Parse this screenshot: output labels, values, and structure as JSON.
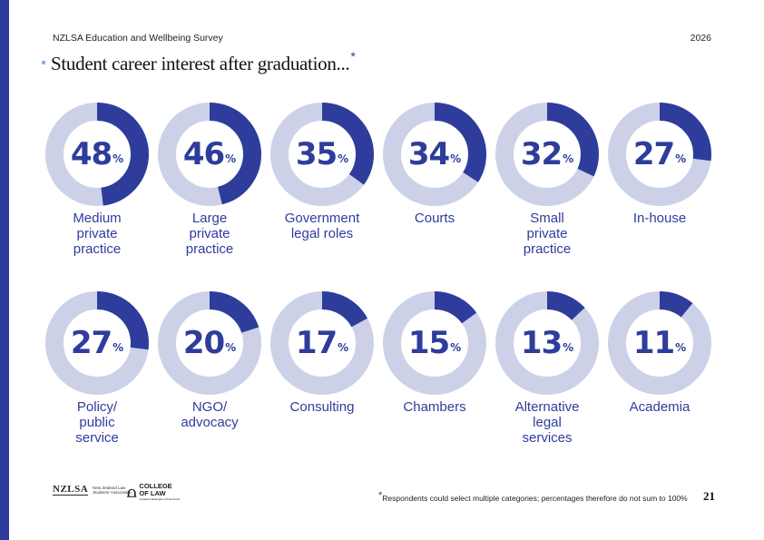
{
  "header": {
    "survey_name": "NZLSA Education and Wellbeing Survey",
    "year": "2026"
  },
  "title": {
    "text": "Student career interest after graduation...",
    "marker": "*"
  },
  "footer": {
    "note_marker": "*",
    "note": "Respondents could select multiple categories; percentages therefore do not sum to 100%",
    "page_number": "21",
    "logo_nzlsa_mark": "NZLSA",
    "logo_nzlsa_text": "New Zealand Law Students' Association",
    "logo_col_text": "COLLEGE OF LAW",
    "logo_col_sub": "Auckland  Wellington  Christchurch"
  },
  "colors": {
    "accent": "#2e3d9b",
    "ring_track": "#cdd1e8",
    "title_marker": "#8fb0e0"
  },
  "chart_data": {
    "type": "pie",
    "variant": "donut-grid",
    "unit": "%",
    "categories": [
      "Medium private practice",
      "Large private practice",
      "Government legal roles",
      "Courts",
      "Small private practice",
      "In-house",
      "Policy/ public service",
      "NGO/ advocacy",
      "Consulting",
      "Chambers",
      "Alternative legal services",
      "Academia"
    ],
    "labels_display": [
      "Medium\nprivate\npractice",
      "Large\nprivate\npractice",
      "Government\nlegal roles",
      "Courts",
      "Small\nprivate\npractice",
      "In-house",
      "Policy/\npublic\nservice",
      "NGO/\nadvocacy",
      "Consulting",
      "Chambers",
      "Alternative\nlegal\nservices",
      "Academia"
    ],
    "values": [
      48,
      46,
      35,
      34,
      32,
      27,
      27,
      20,
      17,
      15,
      13,
      11
    ]
  }
}
